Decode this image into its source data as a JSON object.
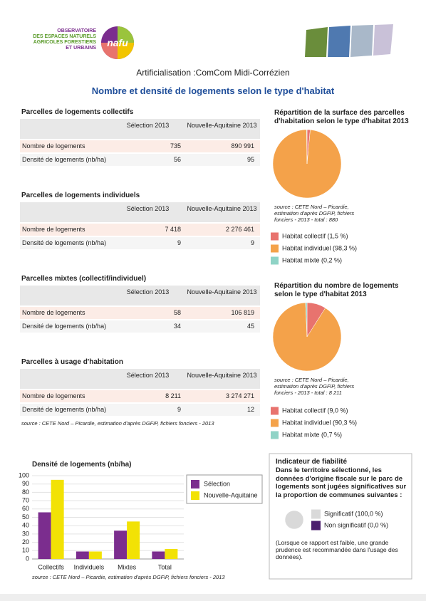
{
  "header": {
    "logo_lines": [
      "OBSERVATOIRE",
      "DES ESPACES NATURELS",
      "AGRICOLES FORESTIERS",
      "ET URBAINS"
    ],
    "logo_badge": "nafu",
    "subtitle": "Artificialisation :ComCom Midi-Corrézien",
    "title": "Nombre et densité de logements selon le type d'habitat"
  },
  "tables": [
    {
      "title": "Parcelles de logements collectifs",
      "columns": [
        "Sélection 2013",
        "Nouvelle-Aquitaine 2013"
      ],
      "rows": [
        [
          "Nombre de logements",
          "735",
          "890 991"
        ],
        [
          "Densité de logements (nb/ha)",
          "56",
          "95"
        ]
      ]
    },
    {
      "title": "Parcelles de logements individuels",
      "columns": [
        "Sélection 2013",
        "Nouvelle-Aquitaine 2013"
      ],
      "rows": [
        [
          "Nombre de logements",
          "7 418",
          "2 276 461"
        ],
        [
          "Densité de logements (nb/ha)",
          "9",
          "9"
        ]
      ]
    },
    {
      "title": "Parcelles mixtes (collectif/individuel)",
      "columns": [
        "Sélection 2013",
        "Nouvelle-Aquitaine 2013"
      ],
      "rows": [
        [
          "Nombre de logements",
          "58",
          "106 819"
        ],
        [
          "Densité de logements (nb/ha)",
          "34",
          "45"
        ]
      ]
    },
    {
      "title": "Parcelles à usage d'habitation",
      "columns": [
        "Sélection 2013",
        "Nouvelle-Aquitaine 2013"
      ],
      "rows": [
        [
          "Nombre de logements",
          "8 211",
          "3 274 271"
        ],
        [
          "Densité de logements (nb/ha)",
          "9",
          "12"
        ]
      ]
    }
  ],
  "tables_source": "source : CETE Nord – Picardie, estimation d'après DGFiP, fichiers fonciers - 2013",
  "chart_data": [
    {
      "type": "pie",
      "title": "Répartition de la surface des parcelles d'habitation selon le type d'habitat 2013",
      "categories": [
        "Habitat collectif (1,5 %)",
        "Habitat individuel (98,3 %)",
        "Habitat mixte (0,2 %)"
      ],
      "values": [
        1.5,
        98.3,
        0.2
      ],
      "colors": [
        "#e8736e",
        "#f4a24a",
        "#8fd3c6"
      ],
      "source": "source : CETE Nord – Picardie, estimation d'après DGFiP, fichiers fonciers - 2013 - total : 880"
    },
    {
      "type": "pie",
      "title": "Répartition du nombre de logements selon le type d'habitat 2013",
      "categories": [
        "Habitat collectif (9,0 %)",
        "Habitat individuel (90,3 %)",
        "Habitat mixte (0,7 %)"
      ],
      "values": [
        9.0,
        90.3,
        0.7
      ],
      "colors": [
        "#e8736e",
        "#f4a24a",
        "#8fd3c6"
      ],
      "source": "source : CETE Nord – Picardie, estimation d'après DGFiP, fichiers fonciers - 2013 - total : 8 211"
    },
    {
      "type": "bar",
      "title": "Densité de logements (nb/ha)",
      "categories": [
        "Collectifs",
        "Individuels",
        "Mixtes",
        "Total"
      ],
      "series": [
        {
          "name": "Sélection",
          "color": "#7b2d8e",
          "values": [
            56,
            9,
            34,
            9
          ]
        },
        {
          "name": "Nouvelle-Aquitaine",
          "color": "#f2e205",
          "values": [
            95,
            9,
            45,
            12
          ]
        }
      ],
      "ylim": [
        0,
        100
      ],
      "yticks": [
        0,
        10,
        20,
        30,
        40,
        50,
        60,
        70,
        80,
        90,
        100
      ],
      "grid": true,
      "source": "source : CETE Nord – Picardie, estimation d'après DGFiP, fichiers fonciers - 2013"
    },
    {
      "type": "pie",
      "title": "Indicateur de fiabilité",
      "subtitle": "Dans le territoire sélectionné, les données d'origine fiscale sur le parc de logements sont jugées significatives sur la proportion de communes suivantes :",
      "categories": [
        "Significatif (100,0 %)",
        "Non significatif (0,0 %)"
      ],
      "values": [
        100,
        0
      ],
      "colors": [
        "#d9d9d9",
        "#4b1e6e"
      ],
      "note": "(Lorsque ce rapport est faible, une grande prudence est recommandée dans l'usage des données)."
    }
  ]
}
